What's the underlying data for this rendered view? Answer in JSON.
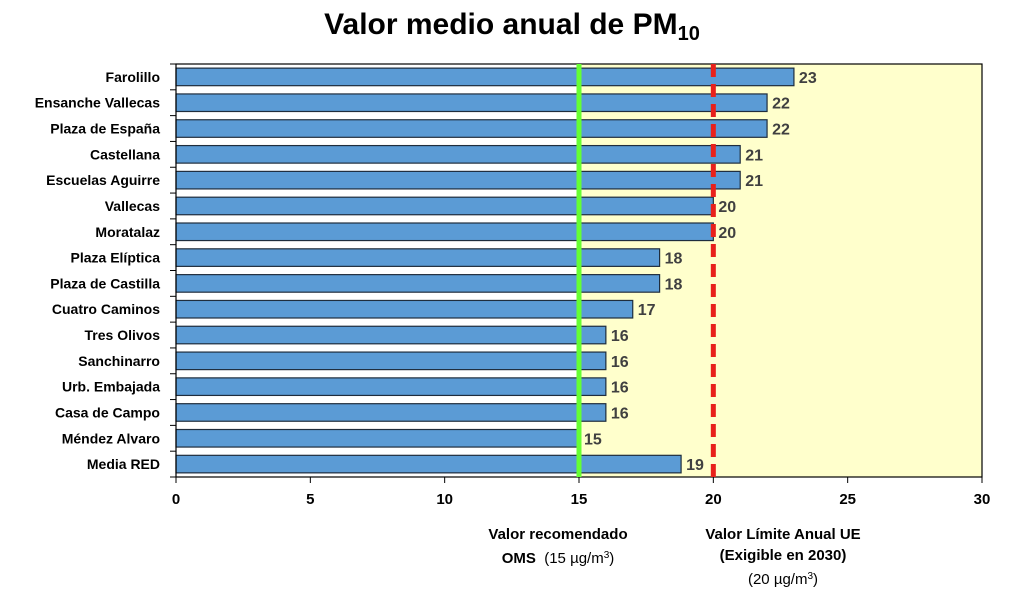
{
  "chart_data": {
    "type": "bar",
    "orientation": "horizontal",
    "title_main": "Valor medio anual de PM",
    "title_sub": "10",
    "categories": [
      "Farolillo",
      "Ensanche Vallecas",
      "Plaza de España",
      "Castellana",
      "Escuelas Aguirre",
      "Vallecas",
      "Moratalaz",
      "Plaza Elíptica",
      "Plaza de Castilla",
      "Cuatro Caminos",
      "Tres Olivos",
      "Sanchinarro",
      "Urb. Embajada",
      "Casa de Campo",
      "Méndez Alvaro",
      "Media RED"
    ],
    "values": [
      23,
      22,
      22,
      21,
      21,
      20,
      20,
      18,
      18,
      17,
      16,
      16,
      16,
      16,
      15,
      18.8
    ],
    "labels": [
      "23",
      "22",
      "22",
      "21",
      "21",
      "20",
      "20",
      "18",
      "18",
      "17",
      "16",
      "16",
      "16",
      "16",
      "15",
      "19"
    ],
    "xlim": [
      0,
      30
    ],
    "xticks": [
      0,
      5,
      10,
      15,
      20,
      25,
      30
    ],
    "grid": false,
    "colors": {
      "bar": "#5b9bd5",
      "bar_border": "#1f2d3d",
      "shaded_region": "#ffffcc",
      "oms_line": "#66ff33",
      "eu_line": "#e8211b",
      "value_label": "#404040"
    },
    "reference_lines": [
      {
        "value": 15,
        "style": "solid",
        "color": "#66ff33",
        "label_bold": "Valor recomendado",
        "label_bold2": "OMS",
        "label_normal": "(15 µg/m",
        "label_sup": "3",
        "label_end": ")"
      },
      {
        "value": 20,
        "style": "dashed",
        "color": "#e8211b",
        "label_bold": "Valor Límite Anual UE",
        "label_bold2": "(Exigible en 2030)",
        "label_normal": "(20 µg/m",
        "label_sup": "3",
        "label_end": ")"
      }
    ]
  }
}
